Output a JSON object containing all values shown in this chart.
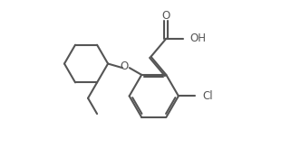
{
  "background_color": "#ffffff",
  "line_color": "#555555",
  "line_width": 1.5,
  "label_fontsize": 8.5,
  "figsize": [
    3.21,
    1.85
  ],
  "dpi": 100,
  "xlim": [
    0,
    10
  ],
  "ylim": [
    0,
    6
  ]
}
